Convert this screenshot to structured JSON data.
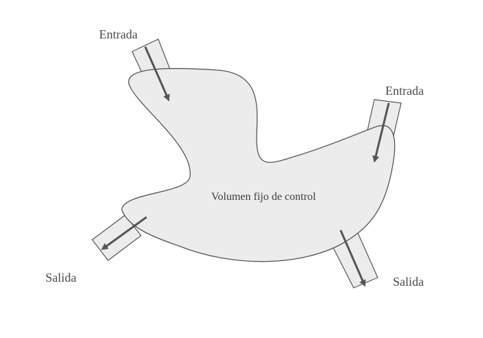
{
  "diagram": {
    "region_label": "Volumen fijo de control",
    "ports": [
      {
        "id": "entrada-1",
        "label": "Entrada",
        "direction": "in"
      },
      {
        "id": "entrada-2",
        "label": "Entrada",
        "direction": "in"
      },
      {
        "id": "salida-1",
        "label": "Salida",
        "direction": "out"
      },
      {
        "id": "salida-2",
        "label": "Salida",
        "direction": "out"
      }
    ],
    "colors": {
      "region_fill": "#ececec",
      "outline": "#555555",
      "arrow": "#555555",
      "text": "#4a4a4a"
    }
  }
}
